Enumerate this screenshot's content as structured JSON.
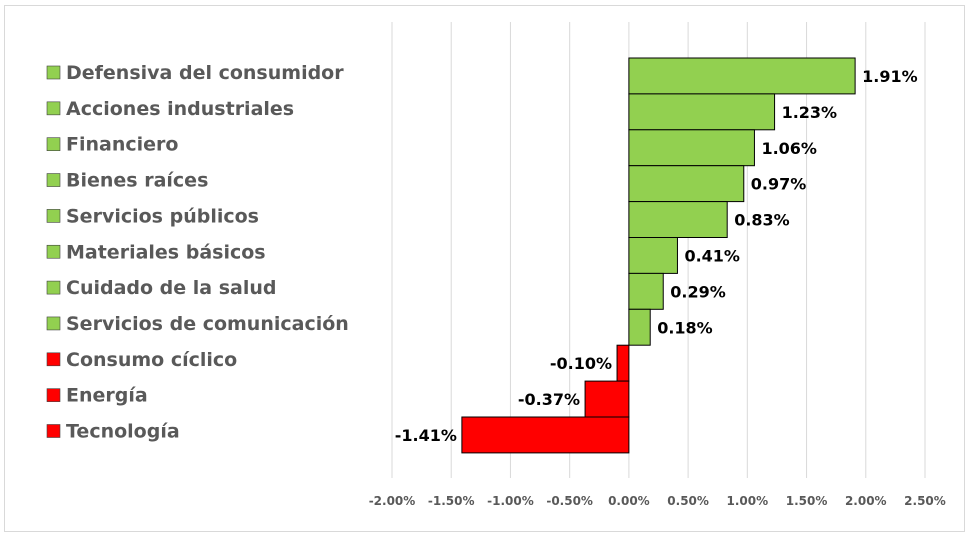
{
  "chart_data": {
    "type": "bar",
    "orientation": "horizontal",
    "categories": [
      "Defensiva del consumidor",
      "Acciones industriales",
      "Financiero",
      "Bienes raíces",
      "Servicios públicos",
      "Materiales básicos",
      "Cuidado de la salud",
      "Servicios de comunicación",
      "Consumo cíclico",
      "Energía",
      "Tecnología"
    ],
    "values": [
      1.91,
      1.23,
      1.06,
      0.97,
      0.83,
      0.41,
      0.29,
      0.18,
      -0.1,
      -0.37,
      -1.41
    ],
    "value_labels": [
      "1.91%",
      "1.23%",
      "1.06%",
      "0.97%",
      "0.83%",
      "0.41%",
      "0.29%",
      "0.18%",
      "-0.10%",
      "-0.37%",
      "-1.41%"
    ],
    "x_ticks": [
      -2.0,
      -1.5,
      -1.0,
      -0.5,
      0.0,
      0.5,
      1.0,
      1.5,
      2.0,
      2.5
    ],
    "x_tick_labels": [
      "-2.00%",
      "-1.50%",
      "-1.00%",
      "-0.50%",
      "0.00%",
      "0.50%",
      "1.00%",
      "1.50%",
      "2.00%",
      "2.50%"
    ],
    "xlim": [
      -2.0,
      2.5
    ],
    "grid": "vertical",
    "legend": "left",
    "colors": {
      "positive": "#92d050",
      "negative": "#ff0000",
      "border": "#000000",
      "grid": "#d9d9d9"
    }
  }
}
